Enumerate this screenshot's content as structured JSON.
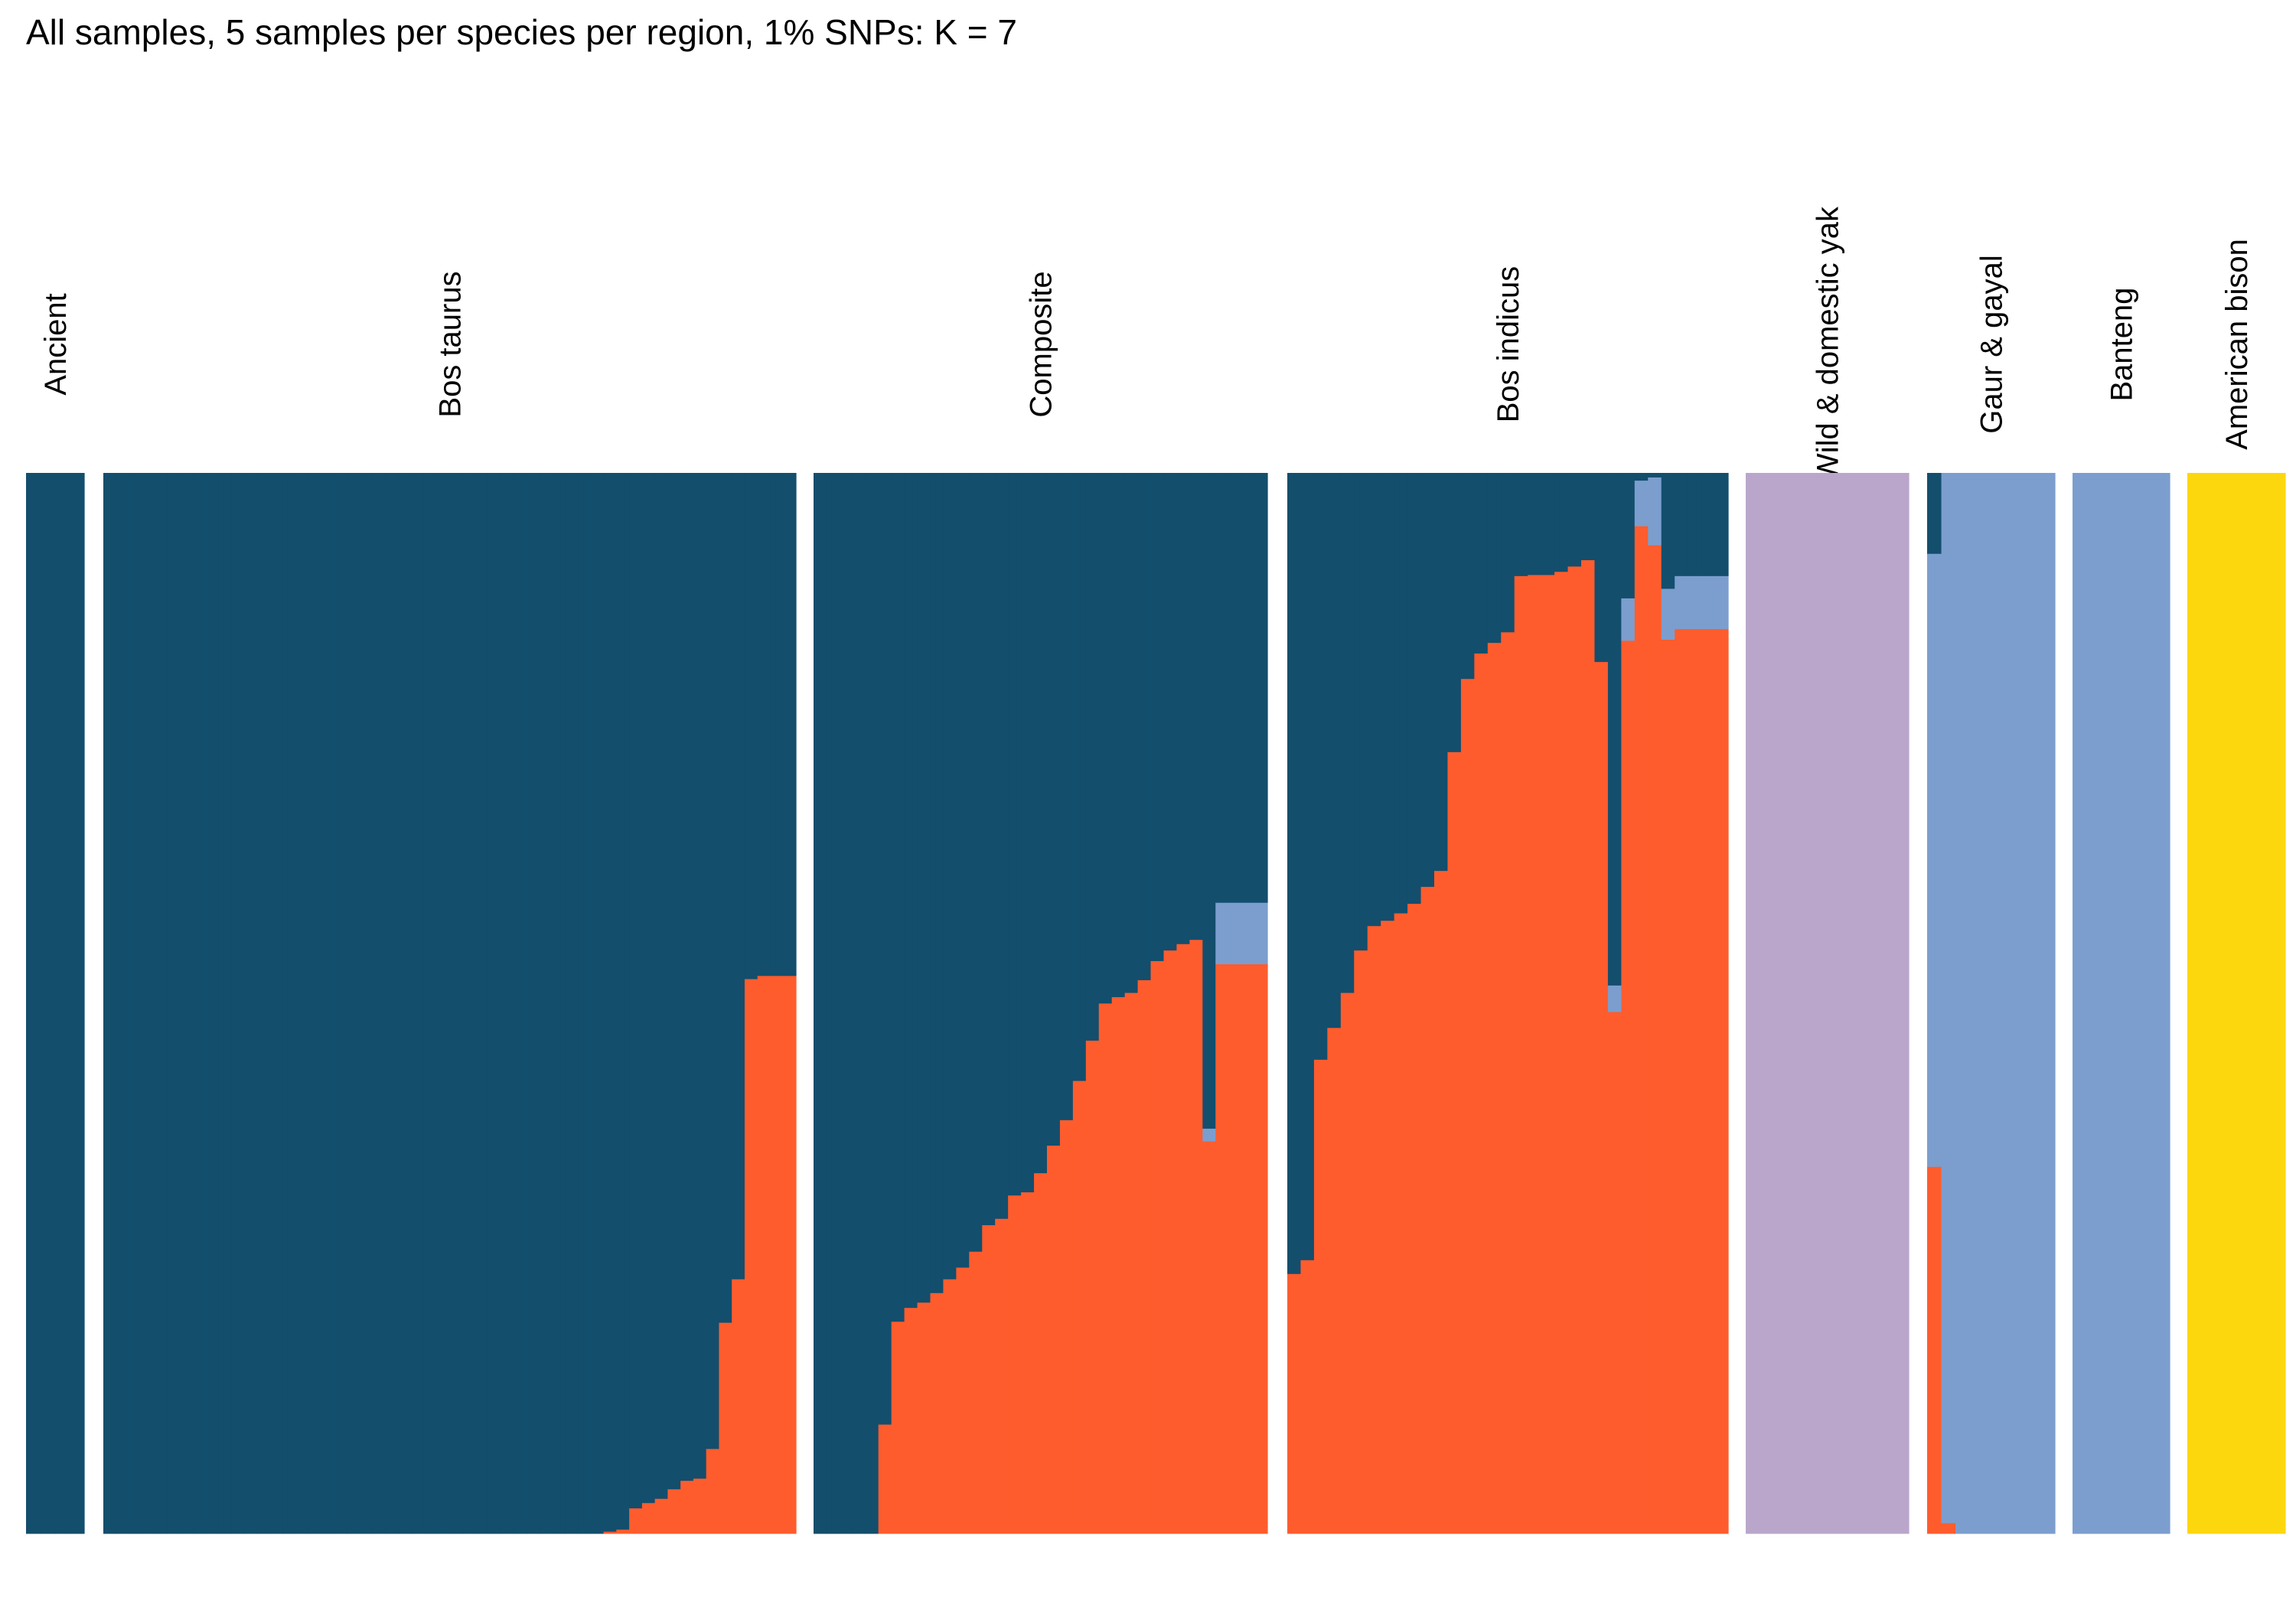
{
  "title": "All samples, 5 samples per species per region, 1% SNPs: K = 7",
  "chart_data": {
    "type": "bar",
    "stacked": true,
    "title": "All samples, 5 samples per species per region, 1% SNPs: K = 7",
    "xlabel": "",
    "ylabel": "",
    "ylim": [
      0,
      1
    ],
    "grid": false,
    "legend": "none",
    "colors": {
      "navy": "#134E6D",
      "orange": "#FF5C2D",
      "blue": "#7C9ECE",
      "mauve": "#BAA6CA",
      "yellow": "#FDD70D"
    },
    "component_order": [
      "orange",
      "blue",
      "mauve",
      "yellow",
      "navy"
    ],
    "groups": [
      {
        "name": "Ancient",
        "samples": [
          {
            "navy": 1
          },
          {
            "navy": 1
          },
          {
            "navy": 1
          },
          {
            "navy": 1
          }
        ]
      },
      {
        "name": "Bos taurus",
        "samples": [
          {
            "navy": 1
          },
          {
            "navy": 1
          },
          {
            "navy": 1
          },
          {
            "navy": 1
          },
          {
            "navy": 1
          },
          {
            "navy": 1
          },
          {
            "navy": 1
          },
          {
            "navy": 1
          },
          {
            "navy": 1
          },
          {
            "navy": 1
          },
          {
            "navy": 1
          },
          {
            "navy": 1
          },
          {
            "navy": 1
          },
          {
            "navy": 1
          },
          {
            "navy": 1
          },
          {
            "navy": 1
          },
          {
            "navy": 1
          },
          {
            "navy": 1
          },
          {
            "navy": 1
          },
          {
            "navy": 1
          },
          {
            "navy": 1
          },
          {
            "navy": 1
          },
          {
            "navy": 1
          },
          {
            "navy": 1
          },
          {
            "navy": 1
          },
          {
            "navy": 1
          },
          {
            "navy": 1
          },
          {
            "navy": 1
          },
          {
            "navy": 1
          },
          {
            "navy": 1
          },
          {
            "navy": 1
          },
          {
            "navy": 1
          },
          {
            "navy": 1
          },
          {
            "navy": 1
          },
          {
            "navy": 1
          },
          {
            "navy": 1
          },
          {
            "navy": 1
          },
          {
            "navy": 1
          },
          {
            "navy": 1
          },
          {
            "orange": 0.002,
            "navy": 0.998
          },
          {
            "orange": 0.004,
            "navy": 0.996
          },
          {
            "orange": 0.024,
            "navy": 0.976
          },
          {
            "orange": 0.029,
            "navy": 0.971
          },
          {
            "orange": 0.033,
            "navy": 0.967
          },
          {
            "orange": 0.042,
            "navy": 0.958
          },
          {
            "orange": 0.05,
            "navy": 0.95
          },
          {
            "orange": 0.052,
            "navy": 0.948
          },
          {
            "orange": 0.08,
            "navy": 0.92
          },
          {
            "orange": 0.199,
            "navy": 0.801
          },
          {
            "orange": 0.24,
            "navy": 0.76
          },
          {
            "orange": 0.523,
            "navy": 0.477
          },
          {
            "orange": 0.526,
            "navy": 0.474
          },
          {
            "orange": 0.526,
            "navy": 0.474
          },
          {
            "orange": 0.526,
            "navy": 0.474
          }
        ]
      },
      {
        "name": "Composite",
        "samples": [
          {
            "navy": 1
          },
          {
            "navy": 1
          },
          {
            "navy": 1
          },
          {
            "navy": 1
          },
          {
            "navy": 1
          },
          {
            "orange": 0.103,
            "navy": 0.897
          },
          {
            "orange": 0.2,
            "navy": 0.8
          },
          {
            "orange": 0.213,
            "navy": 0.787
          },
          {
            "orange": 0.218,
            "navy": 0.782
          },
          {
            "orange": 0.227,
            "navy": 0.773
          },
          {
            "orange": 0.24,
            "navy": 0.76
          },
          {
            "orange": 0.251,
            "navy": 0.749
          },
          {
            "orange": 0.266,
            "navy": 0.734
          },
          {
            "orange": 0.291,
            "navy": 0.709
          },
          {
            "orange": 0.297,
            "navy": 0.703
          },
          {
            "orange": 0.319,
            "navy": 0.681
          },
          {
            "orange": 0.322,
            "navy": 0.678
          },
          {
            "orange": 0.34,
            "navy": 0.66
          },
          {
            "orange": 0.366,
            "navy": 0.634
          },
          {
            "orange": 0.39,
            "navy": 0.61
          },
          {
            "orange": 0.427,
            "navy": 0.573
          },
          {
            "orange": 0.465,
            "navy": 0.535
          },
          {
            "orange": 0.5,
            "navy": 0.5
          },
          {
            "orange": 0.506,
            "navy": 0.494
          },
          {
            "orange": 0.51,
            "navy": 0.49
          },
          {
            "orange": 0.522,
            "navy": 0.478
          },
          {
            "orange": 0.54,
            "navy": 0.46
          },
          {
            "orange": 0.55,
            "navy": 0.45
          },
          {
            "orange": 0.556,
            "navy": 0.444
          },
          {
            "orange": 0.56,
            "navy": 0.44
          },
          {
            "orange": 0.37,
            "blue": 0.012,
            "navy": 0.618
          },
          {
            "orange": 0.537,
            "blue": 0.058,
            "navy": 0.405
          },
          {
            "orange": 0.537,
            "blue": 0.058,
            "navy": 0.405
          },
          {
            "orange": 0.537,
            "blue": 0.058,
            "navy": 0.405
          },
          {
            "orange": 0.537,
            "blue": 0.058,
            "navy": 0.405
          }
        ]
      },
      {
        "name": "Bos indicus",
        "samples": [
          {
            "orange": 0.245,
            "navy": 0.755
          },
          {
            "orange": 0.258,
            "navy": 0.742
          },
          {
            "orange": 0.447,
            "navy": 0.553
          },
          {
            "orange": 0.477,
            "navy": 0.523
          },
          {
            "orange": 0.51,
            "navy": 0.49
          },
          {
            "orange": 0.55,
            "navy": 0.45
          },
          {
            "orange": 0.573,
            "navy": 0.427
          },
          {
            "orange": 0.578,
            "navy": 0.422
          },
          {
            "orange": 0.585,
            "navy": 0.415
          },
          {
            "orange": 0.594,
            "navy": 0.406
          },
          {
            "orange": 0.61,
            "navy": 0.39
          },
          {
            "orange": 0.625,
            "navy": 0.375
          },
          {
            "orange": 0.737,
            "navy": 0.263
          },
          {
            "orange": 0.806,
            "navy": 0.194
          },
          {
            "orange": 0.83,
            "navy": 0.17
          },
          {
            "orange": 0.84,
            "navy": 0.16
          },
          {
            "orange": 0.85,
            "navy": 0.15
          },
          {
            "orange": 0.903,
            "navy": 0.097
          },
          {
            "orange": 0.904,
            "navy": 0.096
          },
          {
            "orange": 0.904,
            "navy": 0.096
          },
          {
            "orange": 0.907,
            "navy": 0.093
          },
          {
            "orange": 0.912,
            "navy": 0.088
          },
          {
            "orange": 0.918,
            "navy": 0.082
          },
          {
            "orange": 0.822,
            "navy": 0.178
          },
          {
            "orange": 0.492,
            "blue": 0.025,
            "navy": 0.483
          },
          {
            "orange": 0.842,
            "blue": 0.04,
            "navy": 0.118
          },
          {
            "orange": 0.95,
            "blue": 0.043,
            "navy": 0.007
          },
          {
            "orange": 0.932,
            "blue": 0.064,
            "navy": 0.004
          },
          {
            "orange": 0.843,
            "blue": 0.048,
            "navy": 0.109
          },
          {
            "orange": 0.853,
            "blue": 0.05,
            "navy": 0.097
          },
          {
            "orange": 0.853,
            "blue": 0.05,
            "navy": 0.097
          },
          {
            "orange": 0.853,
            "blue": 0.05,
            "navy": 0.097
          },
          {
            "orange": 0.853,
            "blue": 0.05,
            "navy": 0.097
          }
        ]
      },
      {
        "name": "Wild & domestic yak",
        "samples": [
          {
            "mauve": 1
          },
          {
            "mauve": 1
          },
          {
            "mauve": 1
          },
          {
            "mauve": 1
          },
          {
            "mauve": 1
          },
          {
            "mauve": 1
          },
          {
            "mauve": 1
          },
          {
            "mauve": 1
          },
          {
            "mauve": 1
          },
          {
            "mauve": 1
          },
          {
            "mauve": 1
          },
          {
            "mauve": 1
          }
        ]
      },
      {
        "name": "Gaur & gayal",
        "samples": [
          {
            "orange": 0.346,
            "blue": 0.578,
            "navy": 0.076
          },
          {
            "orange": 0.01,
            "blue": 0.99
          },
          {
            "blue": 1
          },
          {
            "blue": 1
          },
          {
            "blue": 1
          },
          {
            "blue": 1
          },
          {
            "blue": 1
          },
          {
            "blue": 1
          },
          {
            "blue": 1
          }
        ]
      },
      {
        "name": "Banteng",
        "samples": [
          {
            "blue": 1
          },
          {
            "blue": 1
          },
          {
            "blue": 1
          },
          {
            "blue": 1
          },
          {
            "blue": 1
          },
          {
            "blue": 1
          },
          {
            "blue": 1
          }
        ]
      },
      {
        "name": "American bison",
        "samples": [
          {
            "yellow": 1
          },
          {
            "yellow": 1
          },
          {
            "yellow": 1
          },
          {
            "yellow": 1
          },
          {
            "yellow": 1
          },
          {
            "yellow": 1
          },
          {
            "yellow": 1
          }
        ]
      }
    ]
  }
}
